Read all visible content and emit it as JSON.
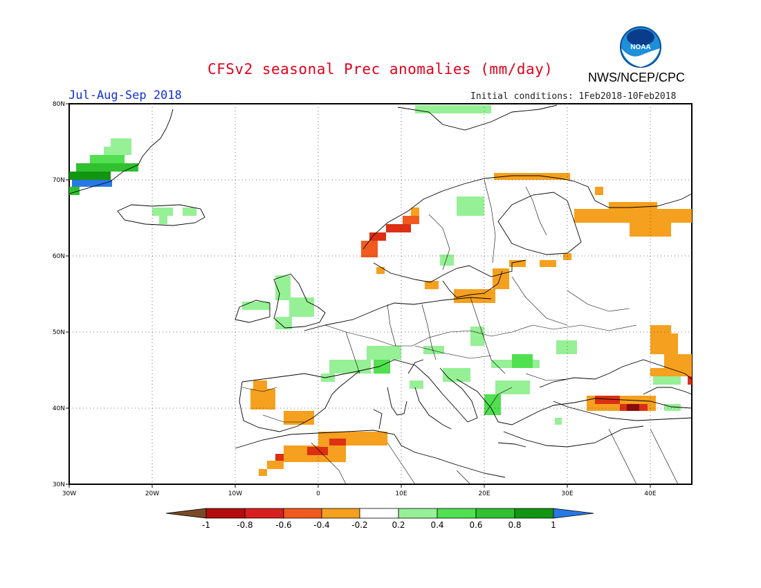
{
  "header": {
    "title": "CFSv2 seasonal Prec anomalies (mm/day)",
    "period": "Jul-Aug-Sep 2018",
    "initial_conditions": "Initial conditions: 1Feb2018-10Feb2018",
    "agency": "NWS/NCEP/CPC",
    "logo_text": "NOAA"
  },
  "map": {
    "lon_range": [
      -30,
      45
    ],
    "lat_range": [
      30,
      80
    ],
    "lon_ticks": [
      "30W",
      "20W",
      "10W",
      "0",
      "10E",
      "20E",
      "30E",
      "40E"
    ],
    "lat_ticks": [
      "30N",
      "40N",
      "50N",
      "60N",
      "70N",
      "80N"
    ],
    "gridlines": "dotted"
  },
  "colorbar": {
    "labels": [
      "-1",
      "-0.8",
      "-0.6",
      "-0.4",
      "-0.2",
      "0.2",
      "0.4",
      "0.6",
      "0.8",
      "1"
    ],
    "colors": [
      "#7a4a28",
      "#b40d0d",
      "#d81e1e",
      "#f05a1e",
      "#f5a01e",
      "#ffffff",
      "#96f096",
      "#50e050",
      "#30c030",
      "#129612",
      "#2878e6"
    ]
  },
  "anomaly_colors": {
    "dry_strong": "#8c0a0a",
    "dry_high": "#dc2f14",
    "dry_moderate": "#f05a1e",
    "dry_light": "#f5a01e",
    "wet_light": "#96f096",
    "wet_moderate": "#50e050",
    "wet_high": "#30c030",
    "wet_strong": "#129612",
    "wet_extreme": "#2878e6"
  }
}
